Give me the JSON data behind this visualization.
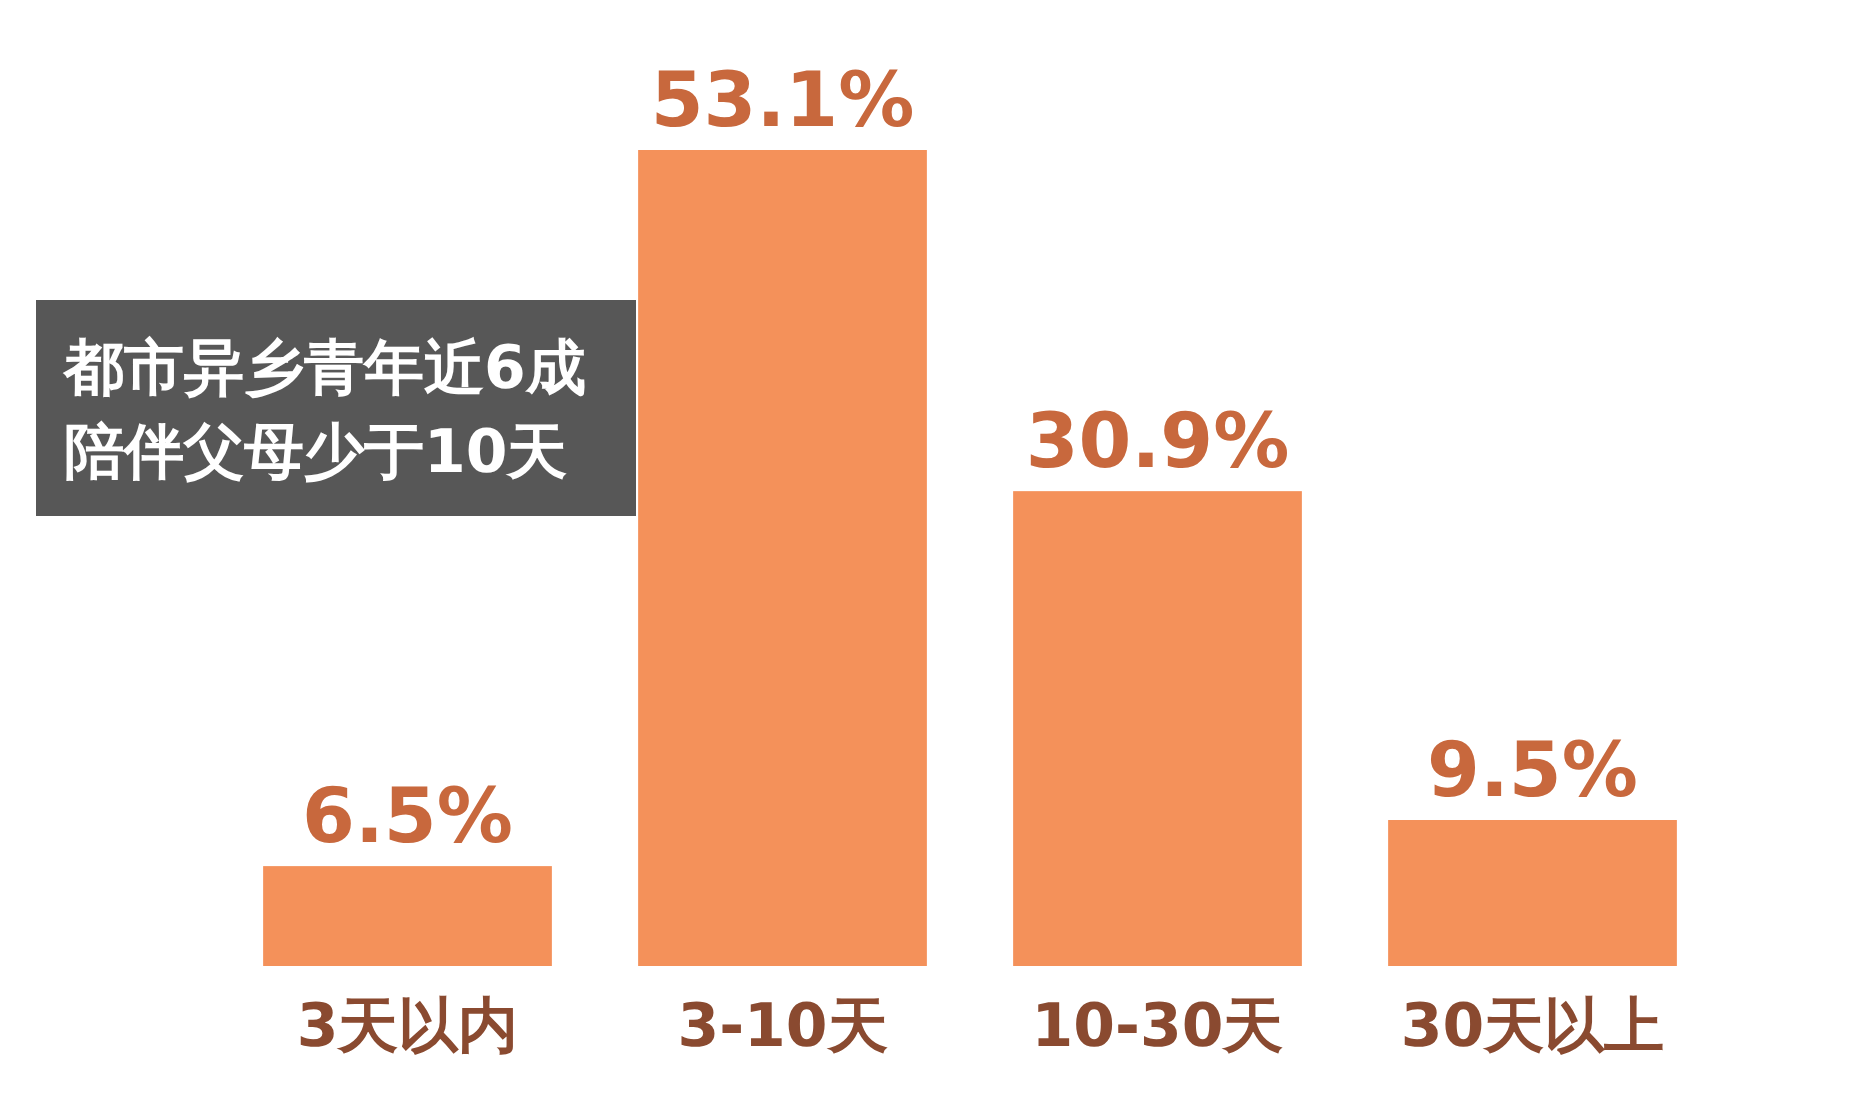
{
  "chart_data": {
    "type": "bar",
    "categories": [
      "3天以内",
      "3-10天",
      "10-30天",
      "30天以上"
    ],
    "values": [
      6.5,
      53.1,
      30.9,
      9.5
    ],
    "value_labels": [
      "6.5%",
      "53.1%",
      "30.9%",
      "9.5%"
    ],
    "color": "#f4915a",
    "annotations": [
      "都市异乡青年近6成",
      "陪伴父母少于10天"
    ]
  }
}
